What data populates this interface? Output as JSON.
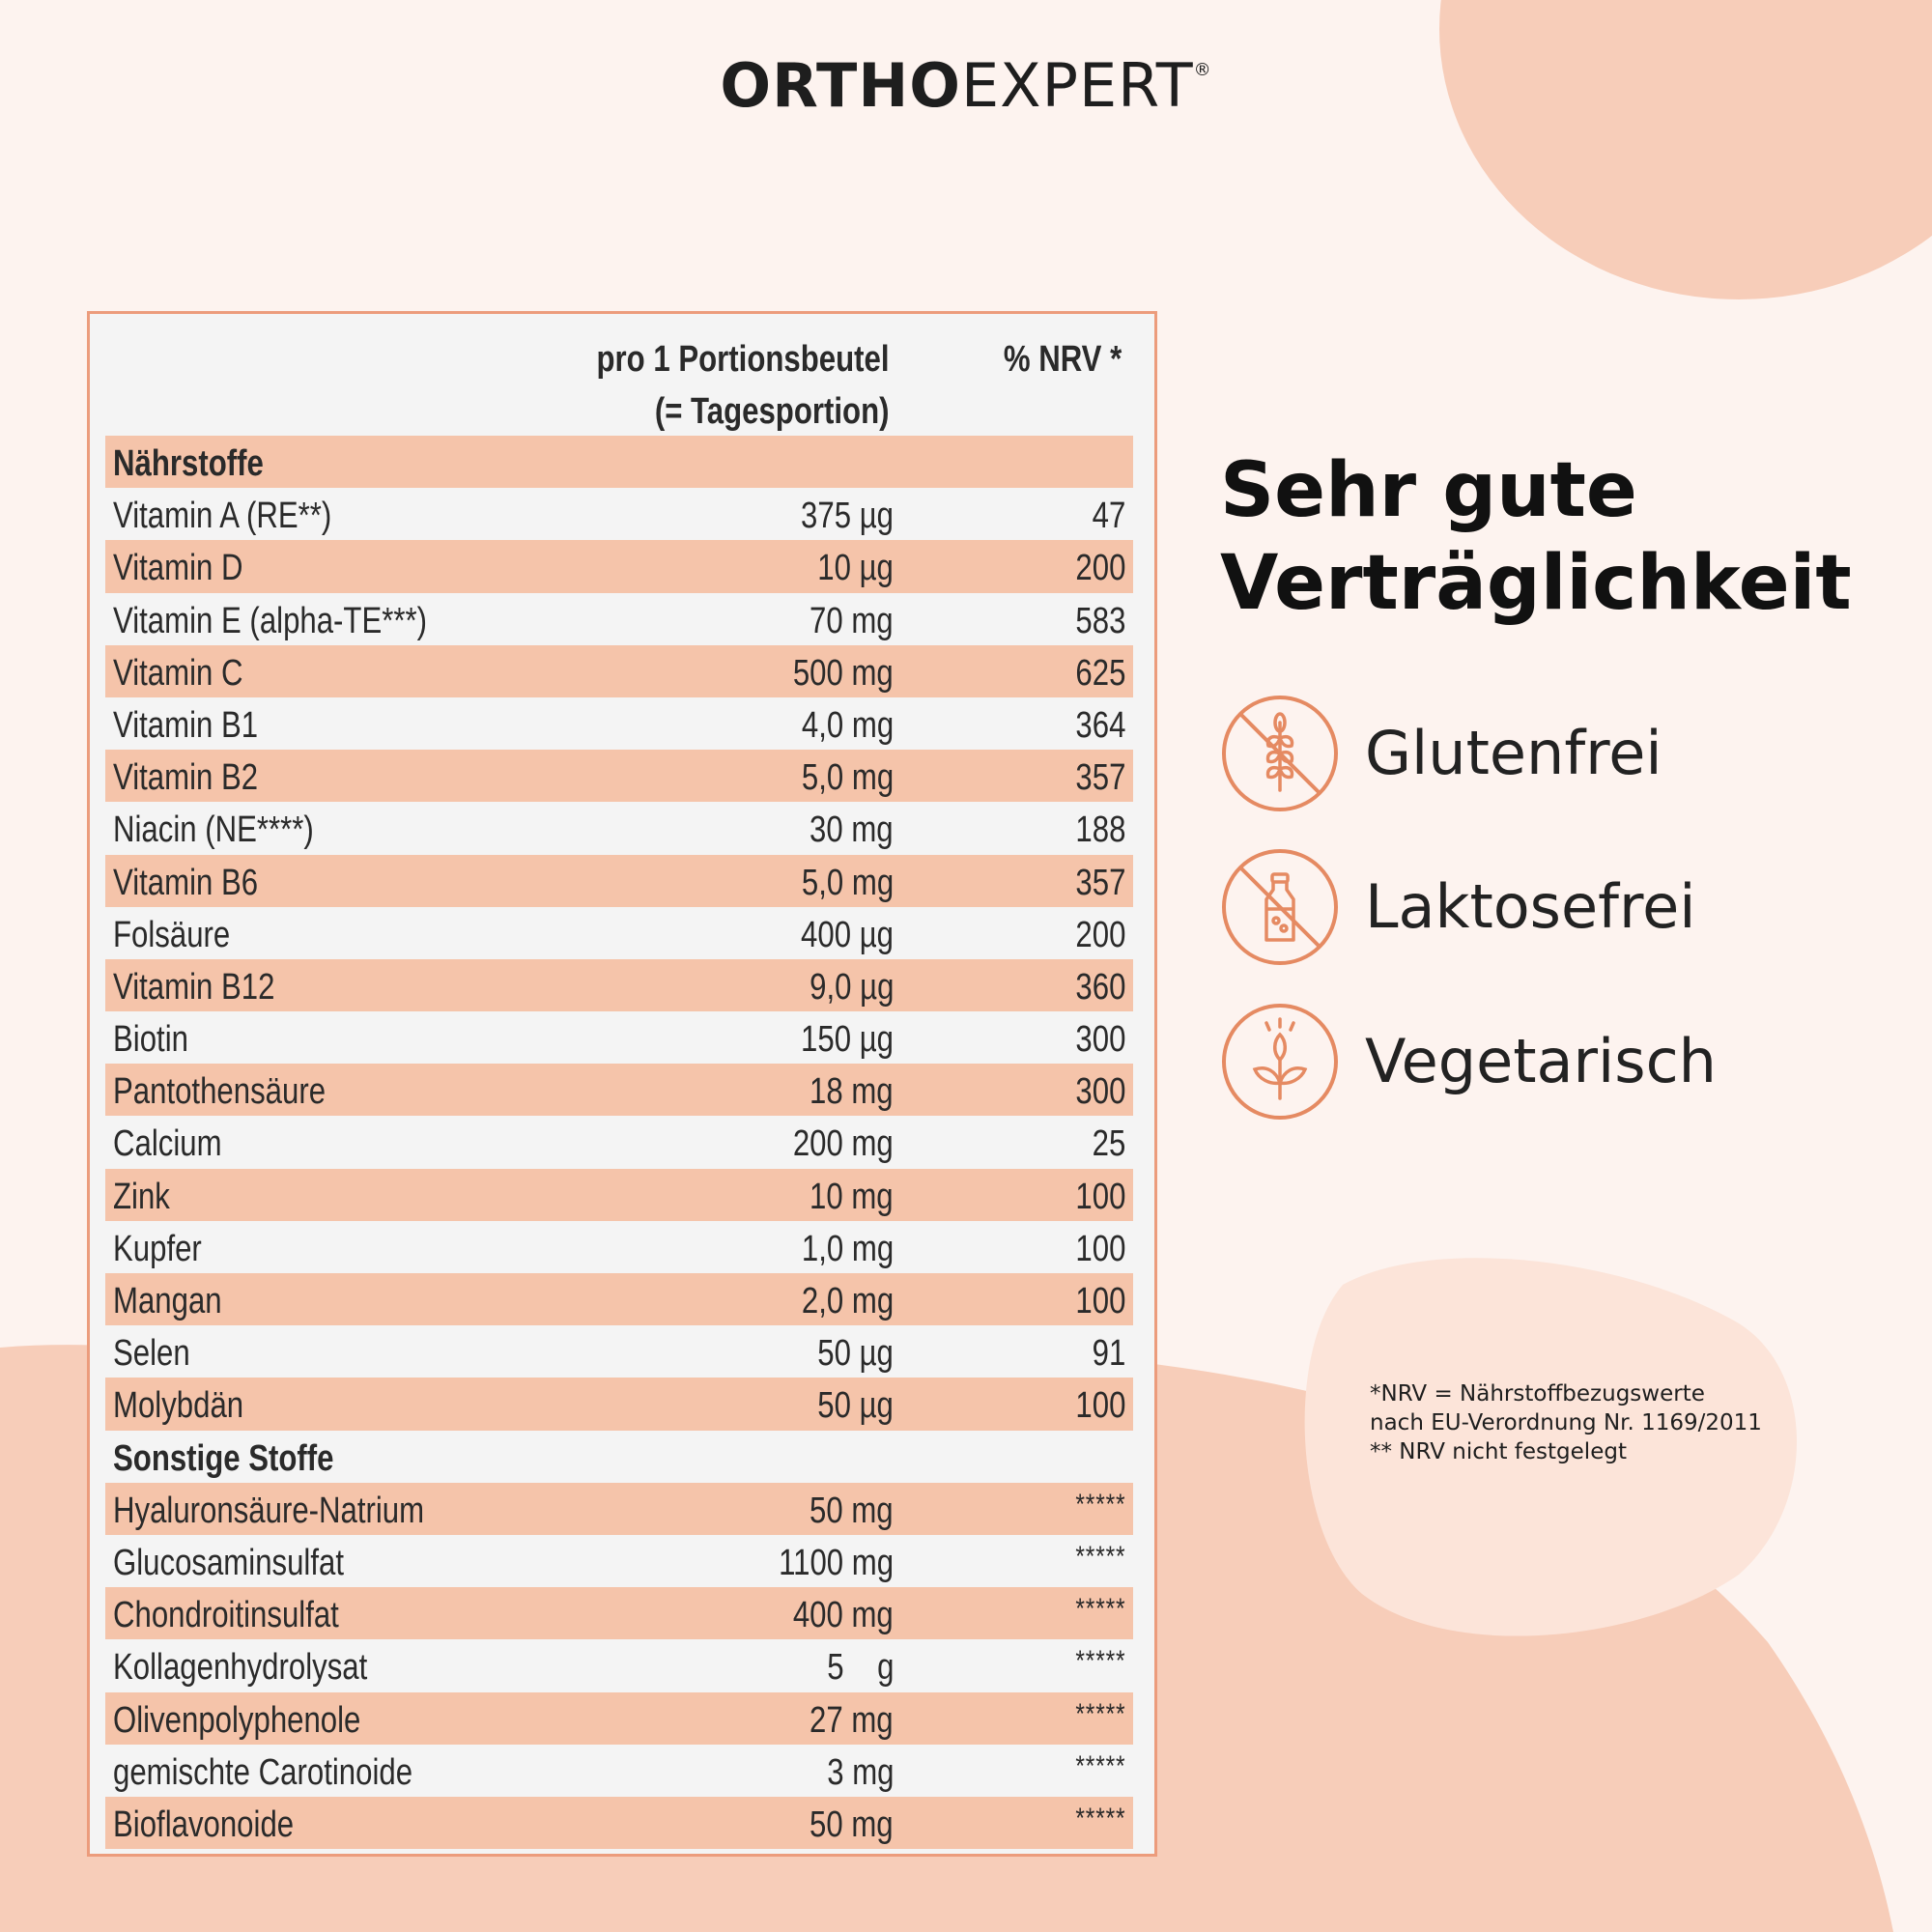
{
  "brand": {
    "bold": "ORTHO",
    "light": "EXPERT",
    "mark": "®"
  },
  "table": {
    "header_portion_line1": "pro 1 Portionsbeutel",
    "header_portion_line2": "(= Tagesportion)",
    "header_nrv": "% NRV *",
    "rows": [
      {
        "name": "Nährstoffe",
        "amount": "",
        "nrv": "",
        "section": true
      },
      {
        "name": "Vitamin A (RE**)",
        "amount": "375 µg",
        "nrv": "47"
      },
      {
        "name": "Vitamin D",
        "amount": "10 µg",
        "nrv": "200"
      },
      {
        "name": "Vitamin E (alpha-TE***)",
        "amount": "70 mg",
        "nrv": "583"
      },
      {
        "name": "Vitamin C",
        "amount": "500 mg",
        "nrv": "625"
      },
      {
        "name": "Vitamin B1",
        "amount": "4,0 mg",
        "nrv": "364"
      },
      {
        "name": "Vitamin B2",
        "amount": "5,0 mg",
        "nrv": "357"
      },
      {
        "name": "Niacin (NE****)",
        "amount": "30 mg",
        "nrv": "188"
      },
      {
        "name": "Vitamin B6",
        "amount": "5,0 mg",
        "nrv": "357"
      },
      {
        "name": "Folsäure",
        "amount": "400 µg",
        "nrv": "200"
      },
      {
        "name": "Vitamin B12",
        "amount": "9,0 µg",
        "nrv": "360"
      },
      {
        "name": "Biotin",
        "amount": "150 µg",
        "nrv": "300"
      },
      {
        "name": "Pantothensäure",
        "amount": "18 mg",
        "nrv": "300"
      },
      {
        "name": "Calcium",
        "amount": "200 mg",
        "nrv": "25"
      },
      {
        "name": "Zink",
        "amount": "10 mg",
        "nrv": "100"
      },
      {
        "name": "Kupfer",
        "amount": "1,0 mg",
        "nrv": "100"
      },
      {
        "name": "Mangan",
        "amount": "2,0 mg",
        "nrv": "100"
      },
      {
        "name": "Selen",
        "amount": "50 µg",
        "nrv": "91"
      },
      {
        "name": "Molybdän",
        "amount": "50 µg",
        "nrv": "100"
      },
      {
        "name": "Sonstige Stoffe",
        "amount": "",
        "nrv": "",
        "section": true
      },
      {
        "name": "Hyaluronsäure-Natrium",
        "amount": "50 mg",
        "nrv": "*****"
      },
      {
        "name": "Glucosaminsulfat",
        "amount": "1100 mg",
        "nrv": "*****"
      },
      {
        "name": "Chondroitinsulfat",
        "amount": "400 mg",
        "nrv": "*****"
      },
      {
        "name": "Kollagenhydrolysat",
        "amount": "5    g",
        "nrv": "*****"
      },
      {
        "name": "Olivenpolyphenole",
        "amount": "27 mg",
        "nrv": "*****"
      },
      {
        "name": "gemischte Carotinoide",
        "amount": "3 mg",
        "nrv": "*****"
      },
      {
        "name": "Bioflavonoide",
        "amount": "50 mg",
        "nrv": "*****"
      }
    ]
  },
  "headline": {
    "line1": "Sehr gute",
    "line2": "Verträglichkeit"
  },
  "features": [
    {
      "label": "Glutenfrei",
      "icon": "no-gluten-icon"
    },
    {
      "label": "Laktosefrei",
      "icon": "no-lactose-icon"
    },
    {
      "label": "Vegetarisch",
      "icon": "vegetarian-icon"
    }
  ],
  "footnote": {
    "line1": "*NRV = Nährstoffbezugswerte",
    "line2": "nach EU-Verordnung Nr. 1169/2011",
    "line3": "** NRV nicht festgelegt"
  },
  "colors": {
    "accent": "#e58a62",
    "highlight": "#f5c4aa",
    "blob": "#f7cdb9",
    "background": "#fdf3ef"
  }
}
